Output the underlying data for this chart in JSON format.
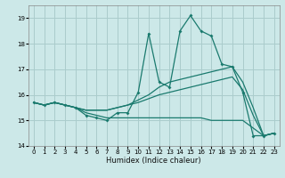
{
  "xlabel": "Humidex (Indice chaleur)",
  "ylabel": "",
  "background_color": "#cce8e8",
  "grid_color": "#aacccc",
  "line_color": "#1a7a6e",
  "xlim": [
    -0.5,
    23.5
  ],
  "ylim": [
    14,
    19.5
  ],
  "xticks": [
    0,
    1,
    2,
    3,
    4,
    5,
    6,
    7,
    8,
    9,
    10,
    11,
    12,
    13,
    14,
    15,
    16,
    17,
    18,
    19,
    20,
    21,
    22,
    23
  ],
  "yticks": [
    14,
    15,
    16,
    17,
    18,
    19
  ],
  "lines": [
    {
      "x": [
        0,
        1,
        2,
        3,
        4,
        5,
        6,
        7,
        8,
        9,
        10,
        11,
        12,
        13,
        14,
        15,
        16,
        17,
        18,
        19,
        20,
        21,
        22,
        23
      ],
      "y": [
        15.7,
        15.6,
        15.7,
        15.6,
        15.5,
        15.2,
        15.1,
        15.0,
        15.3,
        15.3,
        16.1,
        18.4,
        16.5,
        16.3,
        18.5,
        19.1,
        18.5,
        18.3,
        17.2,
        17.1,
        16.1,
        14.4,
        14.4,
        14.5
      ],
      "marker": true
    },
    {
      "x": [
        0,
        1,
        2,
        3,
        4,
        5,
        6,
        7,
        8,
        9,
        10,
        11,
        12,
        13,
        14,
        15,
        16,
        17,
        18,
        19,
        20,
        21,
        22,
        23
      ],
      "y": [
        15.7,
        15.6,
        15.7,
        15.6,
        15.5,
        15.4,
        15.4,
        15.4,
        15.5,
        15.6,
        15.8,
        16.0,
        16.3,
        16.5,
        16.6,
        16.7,
        16.8,
        16.9,
        17.0,
        17.1,
        16.5,
        15.5,
        14.4,
        14.5
      ],
      "marker": false
    },
    {
      "x": [
        0,
        1,
        2,
        3,
        4,
        5,
        6,
        7,
        8,
        9,
        10,
        11,
        12,
        13,
        14,
        15,
        16,
        17,
        18,
        19,
        20,
        21,
        22,
        23
      ],
      "y": [
        15.7,
        15.6,
        15.7,
        15.6,
        15.5,
        15.4,
        15.4,
        15.4,
        15.5,
        15.6,
        15.7,
        15.85,
        16.0,
        16.1,
        16.2,
        16.3,
        16.4,
        16.5,
        16.6,
        16.7,
        16.2,
        15.2,
        14.4,
        14.5
      ],
      "marker": false
    },
    {
      "x": [
        0,
        1,
        2,
        3,
        4,
        5,
        6,
        7,
        8,
        9,
        10,
        11,
        12,
        13,
        14,
        15,
        16,
        17,
        18,
        19,
        20,
        21,
        22,
        23
      ],
      "y": [
        15.7,
        15.6,
        15.7,
        15.6,
        15.5,
        15.3,
        15.2,
        15.1,
        15.1,
        15.1,
        15.1,
        15.1,
        15.1,
        15.1,
        15.1,
        15.1,
        15.1,
        15.0,
        15.0,
        15.0,
        15.0,
        14.7,
        14.4,
        14.5
      ],
      "marker": false
    }
  ]
}
